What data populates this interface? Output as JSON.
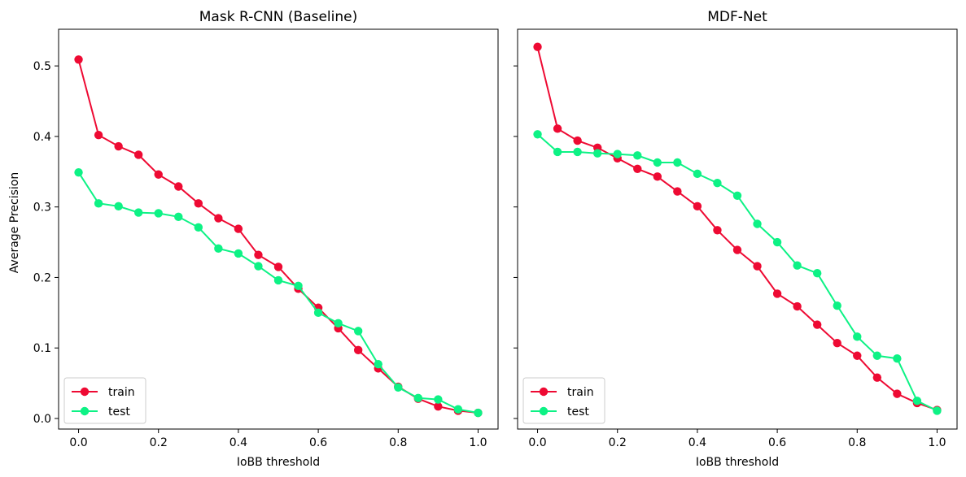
{
  "chart_data": [
    {
      "type": "line",
      "title": "Mask R-CNN (Baseline)",
      "xlabel": "IoBB threshold",
      "ylabel": "Average Precision",
      "xlim": [
        -0.05,
        1.05
      ],
      "ylim": [
        -0.015,
        0.552
      ],
      "xticks": [
        "0.0",
        "0.2",
        "0.4",
        "0.6",
        "0.8",
        "1.0"
      ],
      "yticks": [
        "0.0",
        "0.1",
        "0.2",
        "0.3",
        "0.4",
        "0.5"
      ],
      "grid": false,
      "legend": "lower-left",
      "x": [
        0.0,
        0.05,
        0.1,
        0.15,
        0.2,
        0.25,
        0.3,
        0.35,
        0.4,
        0.45,
        0.5,
        0.55,
        0.6,
        0.65,
        0.7,
        0.75,
        0.8,
        0.85,
        0.9,
        0.95,
        1.0
      ],
      "series": [
        {
          "name": "train",
          "color": "#ee0a33",
          "values": [
            0.509,
            0.402,
            0.386,
            0.374,
            0.346,
            0.329,
            0.305,
            0.284,
            0.269,
            0.232,
            0.215,
            0.184,
            0.157,
            0.128,
            0.097,
            0.071,
            0.045,
            0.028,
            0.017,
            0.011,
            0.008
          ]
        },
        {
          "name": "test",
          "color": "#0df285",
          "values": [
            0.349,
            0.305,
            0.301,
            0.292,
            0.291,
            0.286,
            0.271,
            0.241,
            0.234,
            0.216,
            0.196,
            0.188,
            0.15,
            0.135,
            0.124,
            0.077,
            0.044,
            0.029,
            0.027,
            0.013,
            0.008
          ]
        }
      ]
    },
    {
      "type": "line",
      "title": "MDF-Net",
      "xlabel": "IoBB threshold",
      "ylabel": "",
      "xlim": [
        -0.05,
        1.05
      ],
      "ylim": [
        -0.015,
        0.552
      ],
      "xticks": [
        "0.0",
        "0.2",
        "0.4",
        "0.6",
        "0.8",
        "1.0"
      ],
      "yticks": [],
      "grid": false,
      "legend": "lower-left",
      "x": [
        0.0,
        0.05,
        0.1,
        0.15,
        0.2,
        0.25,
        0.3,
        0.35,
        0.4,
        0.45,
        0.5,
        0.55,
        0.6,
        0.65,
        0.7,
        0.75,
        0.8,
        0.85,
        0.9,
        0.95,
        1.0
      ],
      "series": [
        {
          "name": "train",
          "color": "#ee0a33",
          "values": [
            0.527,
            0.411,
            0.394,
            0.384,
            0.369,
            0.354,
            0.343,
            0.322,
            0.301,
            0.267,
            0.239,
            0.216,
            0.177,
            0.159,
            0.133,
            0.107,
            0.089,
            0.058,
            0.035,
            0.022,
            0.012
          ]
        },
        {
          "name": "test",
          "color": "#0df285",
          "values": [
            0.403,
            0.378,
            0.378,
            0.376,
            0.375,
            0.373,
            0.363,
            0.363,
            0.347,
            0.334,
            0.316,
            0.276,
            0.25,
            0.217,
            0.206,
            0.16,
            0.116,
            0.089,
            0.085,
            0.025,
            0.011
          ]
        }
      ]
    }
  ]
}
